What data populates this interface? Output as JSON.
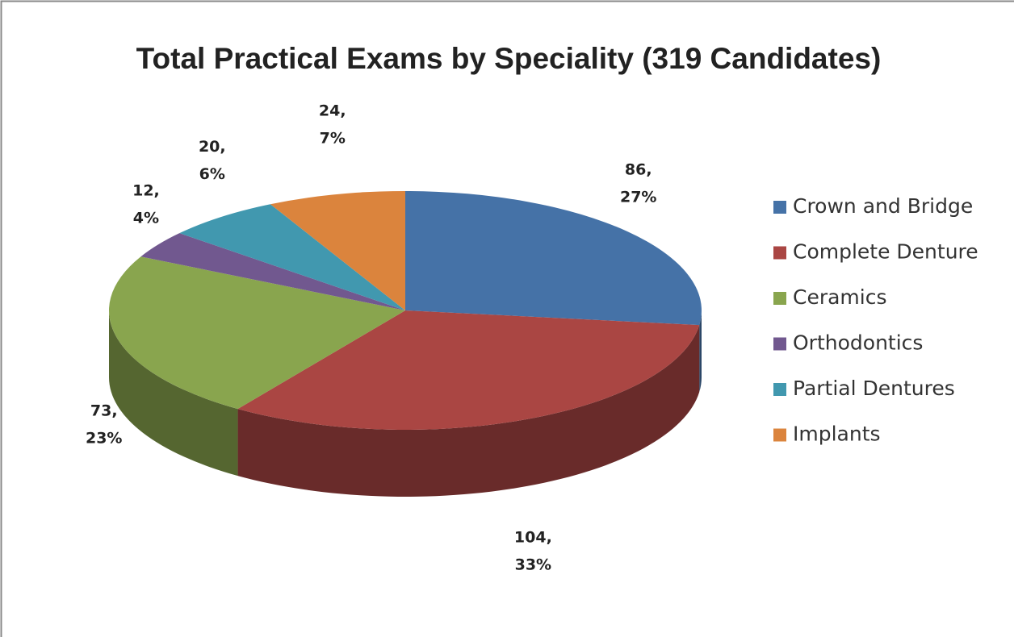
{
  "chart_data": {
    "type": "pie",
    "title": "Total Practical Exams by Speciality (319 Candidates)",
    "categories": [
      "Crown and Bridge",
      "Complete Denture",
      "Ceramics",
      "Orthodontics",
      "Partial Dentures",
      "Implants"
    ],
    "values": [
      86,
      104,
      73,
      12,
      20,
      24
    ],
    "value_labels": [
      [
        "86,",
        "27%"
      ],
      [
        "104,",
        "33%"
      ],
      [
        "73,",
        "23%"
      ],
      [
        "12,",
        "4%"
      ],
      [
        "20,",
        "6%"
      ],
      [
        "24,",
        "7%"
      ]
    ],
    "colors": [
      "#4572a7",
      "#aa4643",
      "#89a54e",
      "#71588f",
      "#4198af",
      "#db843d"
    ],
    "legend": "right"
  }
}
